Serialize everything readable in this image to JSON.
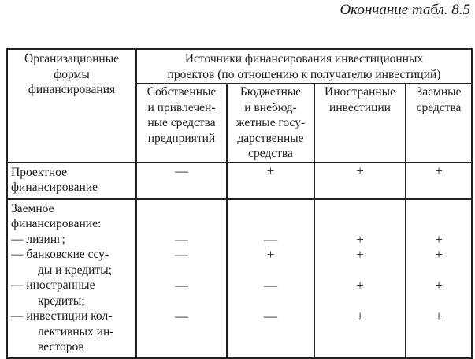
{
  "caption": "Окончание табл. 8.5",
  "header": {
    "first_col": [
      "Организационные",
      "формы",
      "финансирования"
    ],
    "group": [
      "Источники финансирования инвестиционных",
      "проектов (по отношению к получателю инвестиций)"
    ],
    "columns": [
      [
        "Собственные",
        "и привлечен-",
        "ные средства",
        "предприятий"
      ],
      [
        "Бюджетные",
        "и внебюд-",
        "жетные госу-",
        "дарственные",
        "средства"
      ],
      [
        "Иностранные",
        "инвестиции"
      ],
      [
        "Заемные",
        "средства"
      ]
    ]
  },
  "rows": [
    {
      "label": [
        "Проектное",
        "финансирование"
      ],
      "values": [
        "—",
        "+",
        "+",
        "+"
      ]
    }
  ],
  "loan_group": {
    "label": [
      "Заемное",
      "финансирование:"
    ],
    "items": [
      {
        "label": [
          "— лизинг;"
        ],
        "values": [
          "—",
          "—",
          "+",
          "+"
        ]
      },
      {
        "label": [
          "— банковские ссу-",
          "ды и кредиты;"
        ],
        "values": [
          "—",
          "+",
          "+",
          "+"
        ]
      },
      {
        "label": [
          "— иностранные",
          "кредиты;"
        ],
        "values": [
          "—",
          "—",
          "+",
          "+"
        ]
      },
      {
        "label": [
          "— инвестиции кол-",
          "лективных ин-",
          "весторов"
        ],
        "values": [
          "—",
          "—",
          "+",
          "+"
        ]
      }
    ]
  }
}
